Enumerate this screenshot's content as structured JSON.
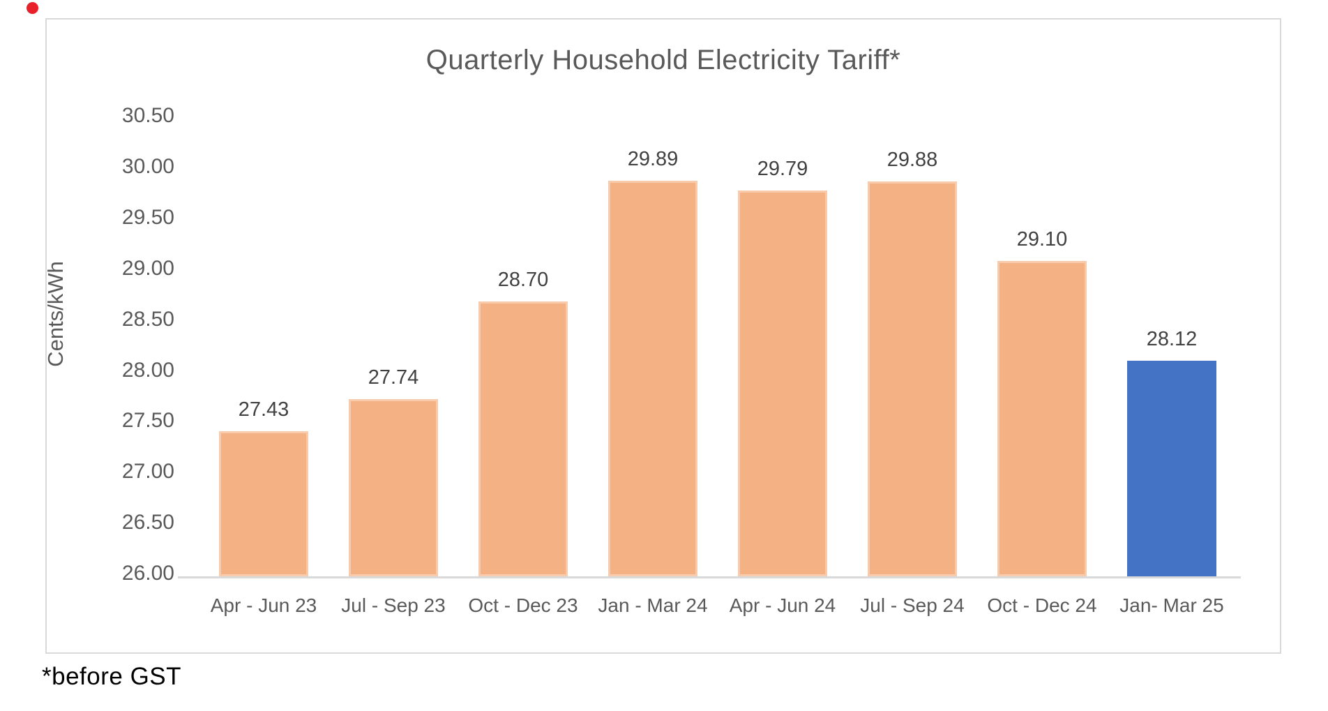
{
  "chart_data": {
    "type": "bar",
    "title": "Quarterly Household Electricity Tariff*",
    "ylabel": "Cents/kWh",
    "xlabel": "",
    "categories": [
      "Apr - Jun 23",
      "Jul - Sep 23",
      "Oct - Dec 23",
      "Jan - Mar 24",
      "Apr - Jun 24",
      "Jul - Sep 24",
      "Oct - Dec 24",
      "Jan- Mar 25"
    ],
    "values": [
      27.43,
      27.74,
      28.7,
      29.89,
      29.79,
      29.88,
      29.1,
      28.12
    ],
    "data_labels": [
      "27.43",
      "27.74",
      "28.70",
      "29.89",
      "29.79",
      "29.88",
      "29.10",
      "28.12"
    ],
    "y_ticks": [
      "30.50",
      "30.00",
      "29.50",
      "29.00",
      "28.50",
      "28.00",
      "27.50",
      "27.00",
      "26.50",
      "26.00"
    ],
    "ylim": [
      26.0,
      30.5
    ],
    "grid": false,
    "legend": "none",
    "bar_fill_colors": [
      "#F4B183",
      "#F4B183",
      "#F4B183",
      "#F4B183",
      "#F4B183",
      "#F4B183",
      "#F4B183",
      "#4472C4"
    ],
    "bar_border_colors": [
      "#F8CBAD",
      "#F8CBAD",
      "#F8CBAD",
      "#F8CBAD",
      "#F8CBAD",
      "#F8CBAD",
      "#F8CBAD",
      "#4472C4"
    ]
  },
  "footnote": "*before GST",
  "colors": {
    "frame_border": "#D9D9D9",
    "axis_line": "#D9D9D9",
    "axis_text": "#595959",
    "data_label_text": "#404040",
    "footnote_text": "#000000",
    "record_dot": "#E8202A"
  }
}
